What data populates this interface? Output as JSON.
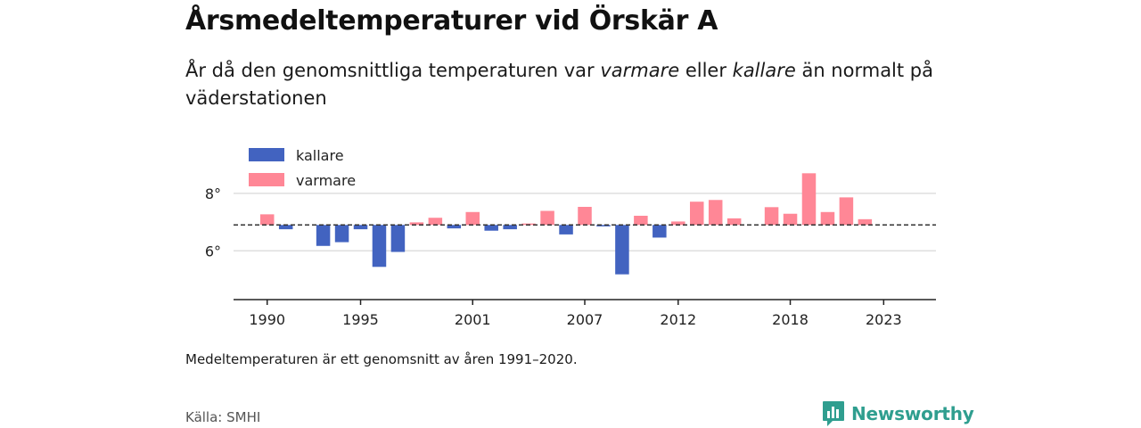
{
  "header": {
    "title": "Årsmedeltemperaturer vid Örskär A",
    "subtitle_parts": [
      "År då den genomsnittliga temperaturen var ",
      "varmare",
      " eller ",
      "kallare",
      " än normalt på väderstationen"
    ]
  },
  "footer": {
    "note": "Medeltemperaturen är ett genomsnitt av åren 1991–2020.",
    "source": "Källa: SMHI",
    "brand": "Newsworthy"
  },
  "colors": {
    "colder": "#4263c0",
    "warmer": "#ff8796",
    "grid": "#d9d9d9",
    "axis": "#222222",
    "reference": "#333333",
    "brand": "#2f9e8f"
  },
  "chart_data": {
    "type": "bar",
    "legend": {
      "position": "top-left",
      "entries": [
        {
          "key": "colder",
          "label": "kallare"
        },
        {
          "key": "warmer",
          "label": "varmare"
        }
      ]
    },
    "reference_line": 6.9,
    "ylim": [
      4.3,
      9.3
    ],
    "y_ticks": [
      6,
      8
    ],
    "y_tick_labels": [
      "6°",
      "8°"
    ],
    "xlim": [
      1988.2,
      2025.8
    ],
    "x_ticks": [
      1990,
      1995,
      2001,
      2007,
      2012,
      2018,
      2023
    ],
    "x_tick_labels": [
      "1990",
      "1995",
      "2001",
      "2007",
      "2012",
      "2018",
      "2023"
    ],
    "grid": "horizontal",
    "years": [
      1990,
      1991,
      1992,
      1993,
      1994,
      1995,
      1996,
      1997,
      1998,
      1999,
      2000,
      2001,
      2002,
      2003,
      2004,
      2005,
      2006,
      2007,
      2008,
      2009,
      2010,
      2011,
      2012,
      2013,
      2014,
      2015,
      2016,
      2017,
      2018,
      2019,
      2020,
      2021,
      2022,
      2023
    ],
    "values": [
      7.27,
      6.75,
      null,
      6.17,
      6.3,
      6.75,
      5.44,
      5.96,
      6.99,
      7.15,
      6.78,
      7.35,
      6.7,
      6.75,
      6.95,
      7.39,
      6.57,
      7.53,
      6.85,
      5.18,
      7.22,
      6.46,
      7.02,
      7.71,
      7.77,
      7.13,
      null,
      7.52,
      7.29,
      8.7,
      7.35,
      7.86,
      7.1,
      null
    ]
  }
}
